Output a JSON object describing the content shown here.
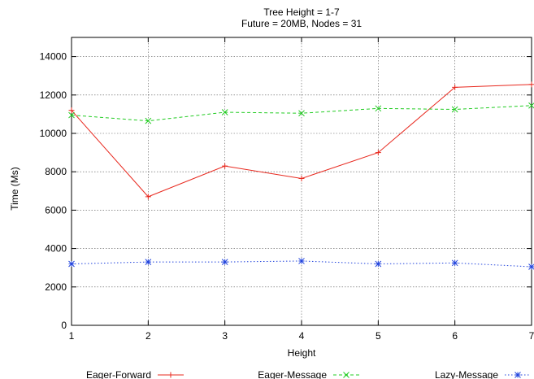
{
  "chart_data": {
    "type": "line",
    "title": "Tree Height = 1-7",
    "subtitle": "Future = 20MB, Nodes = 31",
    "xlabel": "Height",
    "ylabel": "Time (Ms)",
    "xlim": [
      1,
      7
    ],
    "ylim": [
      0,
      15000
    ],
    "x": [
      1,
      2,
      3,
      4,
      5,
      6,
      7
    ],
    "x_ticks": [
      "1",
      "2",
      "3",
      "4",
      "5",
      "6",
      "7"
    ],
    "y_ticks": [
      0,
      2000,
      4000,
      6000,
      8000,
      10000,
      12000,
      14000
    ],
    "grid": true,
    "legend_position": "bottom",
    "series": [
      {
        "name": "Eager-Forward",
        "color": "#e8281e",
        "marker": "plus",
        "values": [
          11200,
          6700,
          8300,
          7650,
          9000,
          12400,
          12550
        ]
      },
      {
        "name": "Eager-Message",
        "color": "#22cc22",
        "marker": "cross",
        "values": [
          10950,
          10650,
          11100,
          11050,
          11300,
          11250,
          11450
        ]
      },
      {
        "name": "Lazy-Message",
        "color": "#2244dd",
        "marker": "star",
        "values": [
          3200,
          3300,
          3300,
          3350,
          3200,
          3250,
          3050
        ]
      }
    ]
  }
}
